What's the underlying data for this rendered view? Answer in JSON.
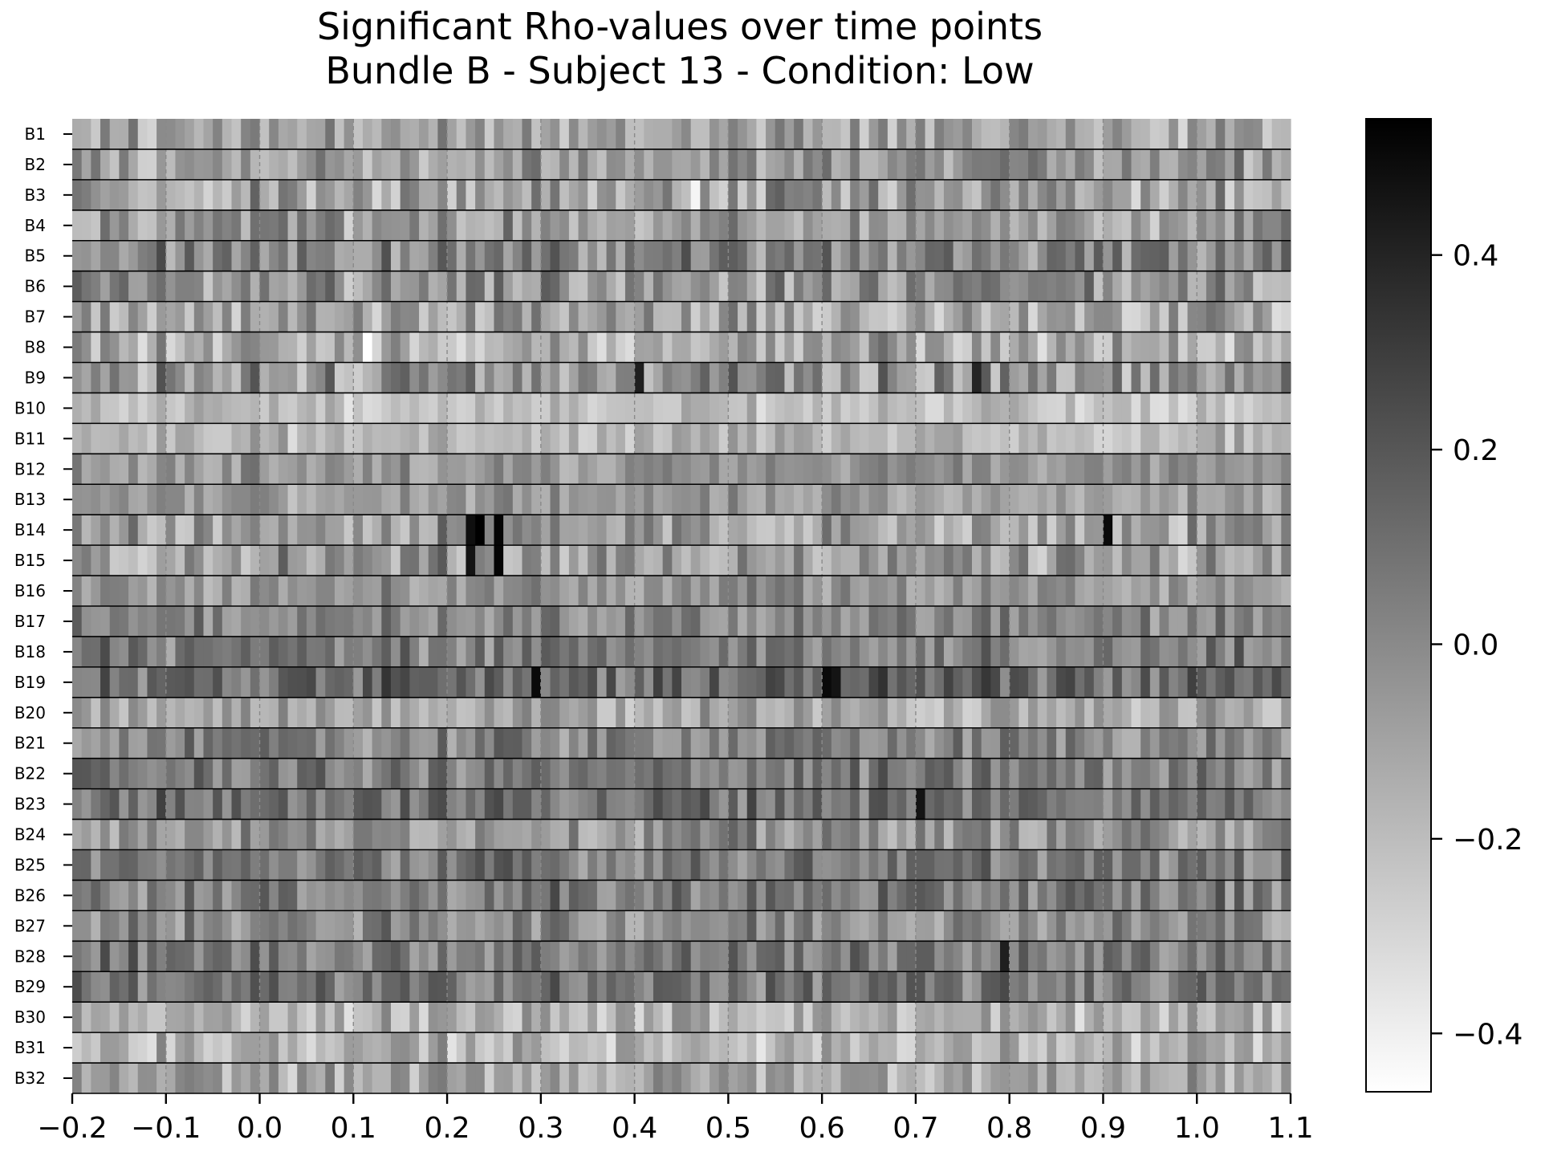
{
  "chart_data": {
    "type": "heatmap",
    "title": [
      "Significant Rho-values over time points",
      "Bundle B - Subject 13 - Condition: Low"
    ],
    "xlabel": "",
    "ylabel": "",
    "colormap": "gray_r",
    "x_range": [
      -0.2,
      1.1
    ],
    "x_ticks": [
      -0.2,
      -0.1,
      0.0,
      0.1,
      0.2,
      0.3,
      0.4,
      0.5,
      0.6,
      0.7,
      0.8,
      0.9,
      1.0,
      1.1
    ],
    "x_tick_labels": [
      "−0.2",
      "−0.1",
      "0.0",
      "0.1",
      "0.2",
      "0.3",
      "0.4",
      "0.5",
      "0.6",
      "0.7",
      "0.8",
      "0.9",
      "1.0",
      "1.1"
    ],
    "n_timepoints": 130,
    "rows": [
      "B1",
      "B2",
      "B3",
      "B4",
      "B5",
      "B6",
      "B7",
      "B8",
      "B9",
      "B10",
      "B11",
      "B12",
      "B13",
      "B14",
      "B15",
      "B16",
      "B17",
      "B18",
      "B19",
      "B20",
      "B21",
      "B22",
      "B23",
      "B24",
      "B25",
      "B26",
      "B27",
      "B28",
      "B29",
      "B30",
      "B31",
      "B32"
    ],
    "vertical_dashed_lines": [
      -0.1,
      0.0,
      0.1,
      0.2,
      0.3,
      0.4,
      0.5,
      0.6,
      0.7,
      0.8,
      0.9,
      1.0
    ],
    "colorbar": {
      "vmin": -0.46,
      "vmax": 0.54,
      "ticks": [
        -0.4,
        -0.2,
        0.0,
        0.2,
        0.4
      ],
      "tick_labels": [
        "−0.4",
        "−0.2",
        "0.0",
        "0.2",
        "0.4"
      ]
    },
    "notable_cells": [
      {
        "row": "B14",
        "x": 0.225,
        "value": 0.48
      },
      {
        "row": "B14",
        "x": 0.235,
        "value": 0.54
      },
      {
        "row": "B14",
        "x": 0.255,
        "value": 0.52
      },
      {
        "row": "B15",
        "x": 0.225,
        "value": 0.46
      },
      {
        "row": "B15",
        "x": 0.255,
        "value": 0.52
      },
      {
        "row": "B14",
        "x": 0.905,
        "value": 0.5
      },
      {
        "row": "B19",
        "x": 0.29,
        "value": 0.5
      },
      {
        "row": "B19",
        "x": 0.605,
        "value": 0.5
      },
      {
        "row": "B19",
        "x": 0.615,
        "value": 0.46
      },
      {
        "row": "B23",
        "x": 0.705,
        "value": 0.46
      },
      {
        "row": "B9",
        "x": 0.405,
        "value": 0.42
      },
      {
        "row": "B9",
        "x": 0.77,
        "value": 0.4
      },
      {
        "row": "B28",
        "x": 0.79,
        "value": 0.42
      },
      {
        "row": "B8",
        "x": 0.115,
        "value": -0.46
      },
      {
        "row": "B3",
        "x": 0.46,
        "value": -0.42
      }
    ],
    "row_patterns": [
      {
        "row": "B1",
        "mean": -0.1,
        "spread": 0.16
      },
      {
        "row": "B2",
        "mean": -0.05,
        "spread": 0.18
      },
      {
        "row": "B3",
        "mean": -0.08,
        "spread": 0.2
      },
      {
        "row": "B4",
        "mean": -0.06,
        "spread": 0.18
      },
      {
        "row": "B5",
        "mean": 0.02,
        "spread": 0.2
      },
      {
        "row": "B6",
        "mean": -0.04,
        "spread": 0.2
      },
      {
        "row": "B7",
        "mean": -0.1,
        "spread": 0.2
      },
      {
        "row": "B8",
        "mean": -0.12,
        "spread": 0.2
      },
      {
        "row": "B9",
        "mean": -0.04,
        "spread": 0.22
      },
      {
        "row": "B10",
        "mean": -0.2,
        "spread": 0.1
      },
      {
        "row": "B11",
        "mean": -0.17,
        "spread": 0.1
      },
      {
        "row": "B12",
        "mean": -0.04,
        "spread": 0.12
      },
      {
        "row": "B13",
        "mean": -0.07,
        "spread": 0.12
      },
      {
        "row": "B14",
        "mean": -0.08,
        "spread": 0.2
      },
      {
        "row": "B15",
        "mean": -0.07,
        "spread": 0.2
      },
      {
        "row": "B16",
        "mean": -0.04,
        "spread": 0.14
      },
      {
        "row": "B17",
        "mean": 0.02,
        "spread": 0.14
      },
      {
        "row": "B18",
        "mean": 0.04,
        "spread": 0.16
      },
      {
        "row": "B19",
        "mean": 0.12,
        "spread": 0.18
      },
      {
        "row": "B20",
        "mean": -0.12,
        "spread": 0.14
      },
      {
        "row": "B21",
        "mean": 0.02,
        "spread": 0.16
      },
      {
        "row": "B22",
        "mean": 0.05,
        "spread": 0.16
      },
      {
        "row": "B23",
        "mean": 0.1,
        "spread": 0.16
      },
      {
        "row": "B24",
        "mean": -0.03,
        "spread": 0.16
      },
      {
        "row": "B25",
        "mean": 0.06,
        "spread": 0.16
      },
      {
        "row": "B26",
        "mean": 0.05,
        "spread": 0.16
      },
      {
        "row": "B27",
        "mean": 0.0,
        "spread": 0.16
      },
      {
        "row": "B28",
        "mean": 0.06,
        "spread": 0.16
      },
      {
        "row": "B29",
        "mean": 0.07,
        "spread": 0.16
      },
      {
        "row": "B30",
        "mean": -0.15,
        "spread": 0.16
      },
      {
        "row": "B31",
        "mean": -0.16,
        "spread": 0.16
      },
      {
        "row": "B32",
        "mean": -0.1,
        "spread": 0.16
      }
    ]
  }
}
